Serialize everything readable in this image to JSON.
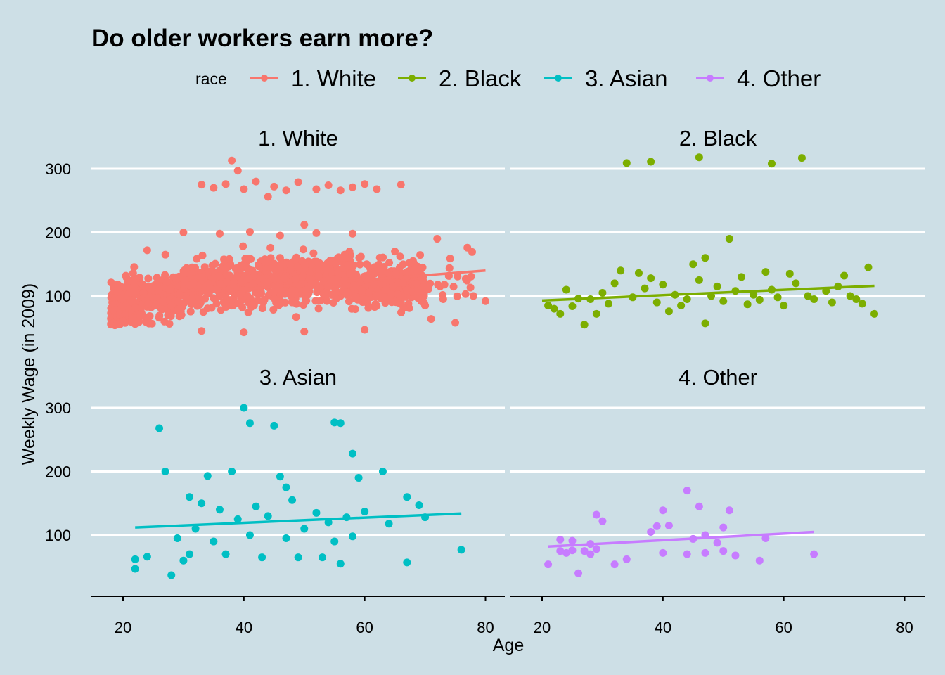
{
  "chart_data": {
    "type": "scatter",
    "title": "Do older workers earn more?",
    "xlabel": "Age",
    "ylabel": "Weekly Wage (in 2009)",
    "legend": {
      "title": "race",
      "position": "top"
    },
    "xlim": [
      15,
      82
    ],
    "ylim": [
      25,
      320
    ],
    "x_ticks": [
      20,
      40,
      60,
      80
    ],
    "y_ticks": [
      100,
      200,
      300
    ],
    "grid": "horizontal major lines at 100, 200, 300",
    "background": "#cddfe6",
    "panels": [
      {
        "name": "1. White",
        "color": "#f8766d",
        "point_summary": "dense cloud of roughly 2,400 points, ages 18-80, wages mostly 45-200 with a band near 265-280",
        "points": [
          [
            38,
            313
          ],
          [
            39,
            297
          ],
          [
            44,
            256
          ],
          [
            50,
            212
          ],
          [
            33,
            275
          ],
          [
            35,
            270
          ],
          [
            37,
            276
          ],
          [
            40,
            268
          ],
          [
            42,
            280
          ],
          [
            45,
            272
          ],
          [
            47,
            266
          ],
          [
            49,
            279
          ],
          [
            52,
            268
          ],
          [
            54,
            274
          ],
          [
            56,
            266
          ],
          [
            58,
            271
          ],
          [
            60,
            276
          ],
          [
            62,
            268
          ],
          [
            66,
            275
          ],
          [
            30,
            200
          ],
          [
            36,
            198
          ],
          [
            41,
            201
          ],
          [
            46,
            195
          ],
          [
            52,
            199
          ],
          [
            58,
            198
          ],
          [
            72,
            190
          ],
          [
            77,
            176
          ],
          [
            24,
            172
          ],
          [
            27,
            165
          ],
          [
            65,
            170
          ],
          [
            68,
            155
          ],
          [
            33,
            45
          ],
          [
            40,
            43
          ],
          [
            50,
            44
          ],
          [
            60,
            47
          ],
          [
            71,
            64
          ],
          [
            75,
            58
          ],
          [
            78,
            100
          ],
          [
            80,
            92
          ],
          [
            20,
            60
          ],
          [
            22,
            75
          ],
          [
            25,
            90
          ],
          [
            28,
            110
          ],
          [
            30,
            130
          ],
          [
            32,
            95
          ],
          [
            34,
            120
          ],
          [
            36,
            140
          ],
          [
            38,
            85
          ],
          [
            40,
            150
          ],
          [
            42,
            105
          ],
          [
            44,
            125
          ],
          [
            46,
            160
          ],
          [
            48,
            90
          ],
          [
            50,
            135
          ],
          [
            52,
            115
          ],
          [
            54,
            145
          ],
          [
            56,
            100
          ],
          [
            58,
            125
          ],
          [
            60,
            95
          ],
          [
            62,
            110
          ],
          [
            64,
            130
          ],
          [
            66,
            90
          ],
          [
            70,
            85
          ],
          [
            73,
            95
          ]
        ],
        "trend": [
          [
            18,
            95
          ],
          [
            80,
            140
          ]
        ]
      },
      {
        "name": "2. Black",
        "color": "#7cae00",
        "points": [
          [
            34,
            309
          ],
          [
            38,
            311
          ],
          [
            46,
            318
          ],
          [
            58,
            308
          ],
          [
            63,
            317
          ],
          [
            51,
            190
          ],
          [
            47,
            160
          ],
          [
            45,
            150
          ],
          [
            33,
            140
          ],
          [
            36,
            136
          ],
          [
            57,
            138
          ],
          [
            61,
            135
          ],
          [
            74,
            145
          ],
          [
            70,
            132
          ],
          [
            21,
            85
          ],
          [
            22,
            80
          ],
          [
            23,
            72
          ],
          [
            25,
            84
          ],
          [
            27,
            55
          ],
          [
            24,
            110
          ],
          [
            28,
            95
          ],
          [
            30,
            105
          ],
          [
            31,
            88
          ],
          [
            32,
            120
          ],
          [
            35,
            98
          ],
          [
            37,
            112
          ],
          [
            39,
            90
          ],
          [
            40,
            118
          ],
          [
            42,
            102
          ],
          [
            43,
            85
          ],
          [
            44,
            95
          ],
          [
            46,
            125
          ],
          [
            48,
            100
          ],
          [
            49,
            115
          ],
          [
            50,
            92
          ],
          [
            52,
            108
          ],
          [
            53,
            130
          ],
          [
            54,
            87
          ],
          [
            55,
            102
          ],
          [
            56,
            94
          ],
          [
            58,
            110
          ],
          [
            59,
            98
          ],
          [
            60,
            85
          ],
          [
            62,
            120
          ],
          [
            64,
            100
          ],
          [
            65,
            95
          ],
          [
            67,
            108
          ],
          [
            68,
            90
          ],
          [
            69,
            115
          ],
          [
            71,
            100
          ],
          [
            72,
            95
          ],
          [
            73,
            88
          ],
          [
            75,
            72
          ],
          [
            47,
            57
          ],
          [
            29,
            72
          ],
          [
            41,
            76
          ],
          [
            26,
            96
          ],
          [
            38,
            128
          ]
        ],
        "trend": [
          [
            20,
            93
          ],
          [
            75,
            116
          ]
        ]
      },
      {
        "name": "3. Asian",
        "color": "#00bfc4",
        "points": [
          [
            40,
            300
          ],
          [
            26,
            268
          ],
          [
            41,
            276
          ],
          [
            45,
            272
          ],
          [
            55,
            277
          ],
          [
            56,
            276
          ],
          [
            58,
            228
          ],
          [
            27,
            200
          ],
          [
            38,
            200
          ],
          [
            63,
            200
          ],
          [
            59,
            190
          ],
          [
            46,
            192
          ],
          [
            34,
            193
          ],
          [
            22,
            62
          ],
          [
            22,
            47
          ],
          [
            24,
            66
          ],
          [
            28,
            37
          ],
          [
            30,
            60
          ],
          [
            32,
            110
          ],
          [
            33,
            150
          ],
          [
            35,
            90
          ],
          [
            36,
            140
          ],
          [
            37,
            70
          ],
          [
            39,
            125
          ],
          [
            41,
            100
          ],
          [
            42,
            145
          ],
          [
            43,
            65
          ],
          [
            44,
            130
          ],
          [
            47,
            95
          ],
          [
            48,
            155
          ],
          [
            49,
            65
          ],
          [
            50,
            110
          ],
          [
            52,
            135
          ],
          [
            53,
            65
          ],
          [
            54,
            120
          ],
          [
            55,
            90
          ],
          [
            56,
            55
          ],
          [
            57,
            128
          ],
          [
            58,
            98
          ],
          [
            60,
            137
          ],
          [
            64,
            118
          ],
          [
            67,
            160
          ],
          [
            67,
            57
          ],
          [
            69,
            147
          ],
          [
            70,
            128
          ],
          [
            76,
            77
          ],
          [
            29,
            95
          ],
          [
            31,
            70
          ],
          [
            31,
            160
          ],
          [
            47,
            175
          ]
        ],
        "trend": [
          [
            22,
            112
          ],
          [
            76,
            134
          ]
        ]
      },
      {
        "name": "4. Other",
        "color": "#c77cff",
        "points": [
          [
            21,
            54
          ],
          [
            23,
            93
          ],
          [
            23,
            75
          ],
          [
            24,
            72
          ],
          [
            25,
            91
          ],
          [
            25,
            76
          ],
          [
            26,
            40
          ],
          [
            27,
            75
          ],
          [
            28,
            86
          ],
          [
            28,
            70
          ],
          [
            29,
            78
          ],
          [
            29,
            132
          ],
          [
            30,
            122
          ],
          [
            32,
            54
          ],
          [
            34,
            62
          ],
          [
            38,
            105
          ],
          [
            39,
            114
          ],
          [
            40,
            139
          ],
          [
            41,
            115
          ],
          [
            40,
            72
          ],
          [
            44,
            170
          ],
          [
            44,
            70
          ],
          [
            45,
            94
          ],
          [
            46,
            145
          ],
          [
            47,
            72
          ],
          [
            47,
            100
          ],
          [
            49,
            88
          ],
          [
            50,
            112
          ],
          [
            50,
            75
          ],
          [
            51,
            139
          ],
          [
            52,
            68
          ],
          [
            56,
            60
          ],
          [
            57,
            95
          ],
          [
            65,
            70
          ]
        ],
        "trend": [
          [
            21,
            82
          ],
          [
            65,
            105
          ]
        ]
      }
    ]
  }
}
